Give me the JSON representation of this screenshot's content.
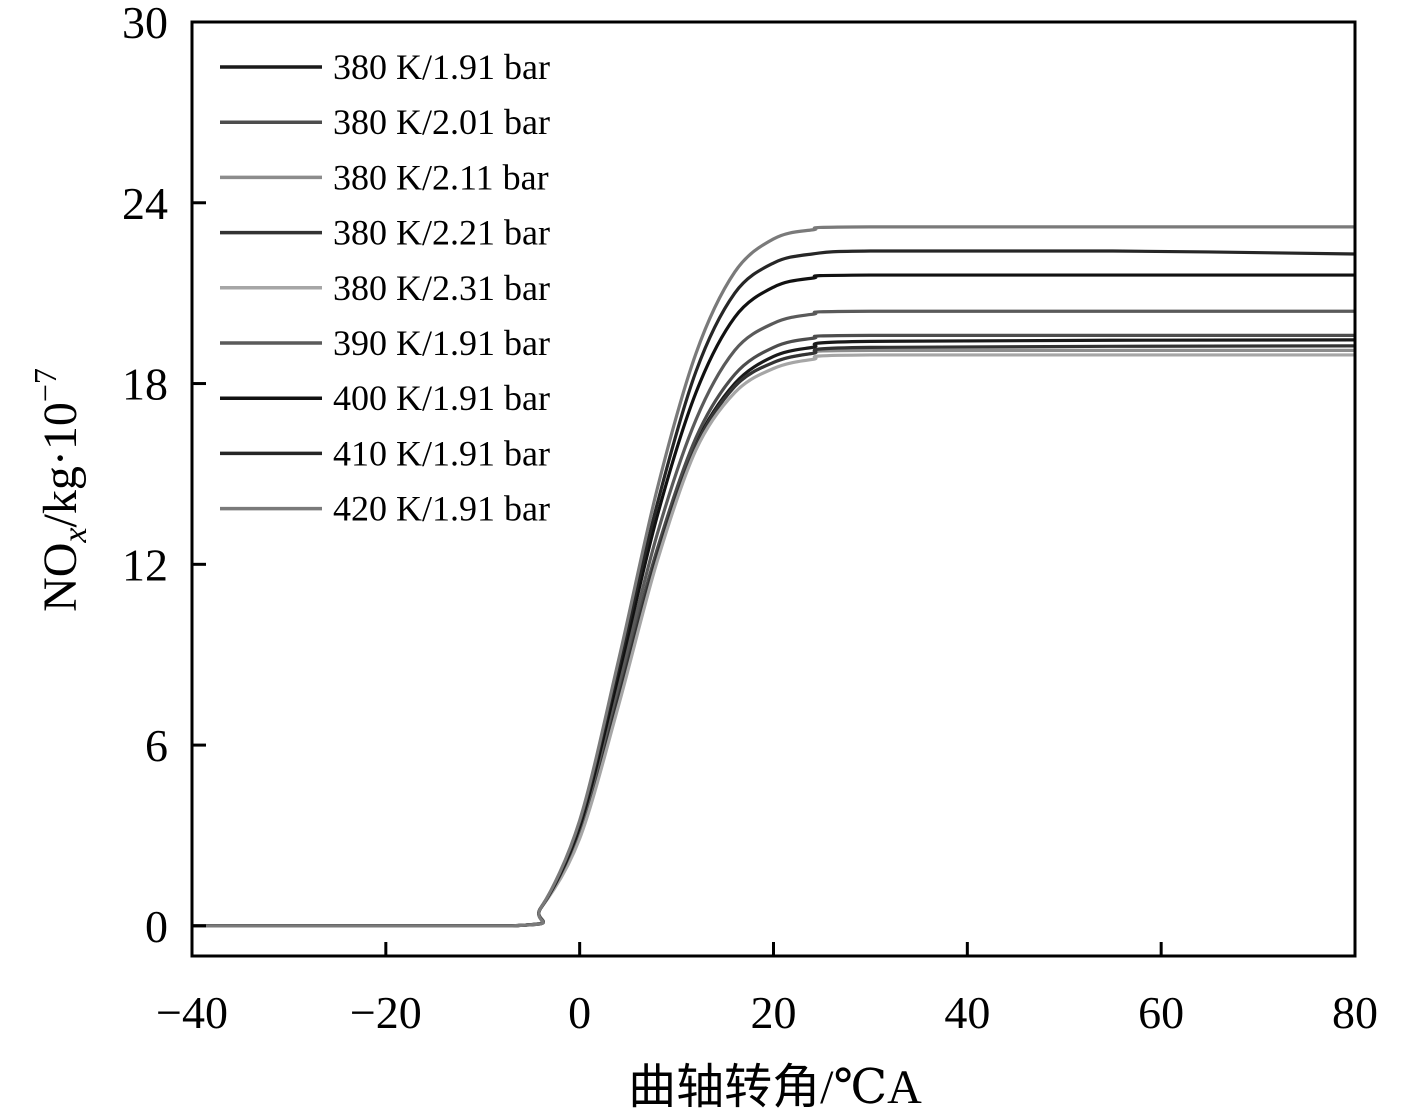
{
  "chart_data": {
    "type": "line",
    "xlabel": "曲轴转角/℃A",
    "ylabel": {
      "main": "NO",
      "sub": "x",
      "rest": "/kg·10",
      "sup": "−7"
    },
    "xlim": [
      -40,
      80
    ],
    "ylim": [
      -1,
      30
    ],
    "xticks": [
      -40,
      -20,
      0,
      20,
      40,
      60,
      80
    ],
    "xtick_labels": [
      "−40",
      "−20",
      "0",
      "20",
      "40",
      "60",
      "80"
    ],
    "yticks": [
      0,
      6,
      12,
      18,
      24,
      30
    ],
    "ytick_labels": [
      "0",
      "6",
      "12",
      "18",
      "24",
      "30"
    ],
    "grid": false,
    "legend_position": "top-left",
    "series": [
      {
        "name": "380 K/1.91 bar",
        "color": "#1a1a1a",
        "x": [
          -40,
          -7,
          -4,
          0,
          4,
          8,
          12,
          16,
          20,
          24,
          30,
          80
        ],
        "y": [
          0,
          0,
          0.6,
          3.0,
          7.5,
          12.4,
          16.0,
          18.0,
          18.9,
          19.2,
          19.4,
          19.45
        ]
      },
      {
        "name": "380 K/2.01 bar",
        "color": "#4d4d4d",
        "x": [
          -40,
          -7,
          -4,
          0,
          4,
          8,
          12,
          16,
          20,
          24,
          30,
          80
        ],
        "y": [
          0,
          0,
          0.6,
          3.1,
          7.8,
          12.5,
          16.2,
          18.3,
          19.2,
          19.5,
          19.6,
          19.6
        ]
      },
      {
        "name": "380 K/2.11 bar",
        "color": "#8c8c8c",
        "x": [
          -40,
          -7,
          -4,
          0,
          4,
          8,
          12,
          16,
          20,
          24,
          30,
          80
        ],
        "y": [
          0,
          0,
          0.6,
          3.0,
          7.4,
          12.2,
          15.9,
          17.9,
          18.7,
          19.0,
          19.1,
          19.1
        ]
      },
      {
        "name": "380 K/2.21 bar",
        "color": "#333333",
        "x": [
          -40,
          -7,
          -4,
          0,
          4,
          8,
          12,
          16,
          20,
          24,
          30,
          80
        ],
        "y": [
          0,
          0,
          0.6,
          3.0,
          7.5,
          12.3,
          15.9,
          17.9,
          18.7,
          19.0,
          19.2,
          19.25
        ]
      },
      {
        "name": "380 K/2.31 bar",
        "color": "#a6a6a6",
        "x": [
          -40,
          -7,
          -4,
          0,
          4,
          8,
          12,
          16,
          20,
          24,
          30,
          80
        ],
        "y": [
          0,
          0,
          0.6,
          2.9,
          7.3,
          12.1,
          15.8,
          17.7,
          18.5,
          18.8,
          18.95,
          18.95
        ]
      },
      {
        "name": "390 K/1.91 bar",
        "color": "#5a5a5a",
        "x": [
          -40,
          -7,
          -4,
          0,
          4,
          8,
          12,
          16,
          20,
          24,
          30,
          80
        ],
        "y": [
          0,
          0,
          0.6,
          3.2,
          8.0,
          13.0,
          16.8,
          19.1,
          20.0,
          20.3,
          20.4,
          20.4
        ]
      },
      {
        "name": "400 K/1.91 bar",
        "color": "#111111",
        "x": [
          -40,
          -7,
          -4,
          0,
          4,
          8,
          12,
          16,
          20,
          24,
          30,
          80
        ],
        "y": [
          0,
          0,
          0.6,
          3.3,
          8.3,
          13.6,
          17.7,
          20.2,
          21.2,
          21.5,
          21.6,
          21.6
        ]
      },
      {
        "name": "410 K/1.91 bar",
        "color": "#262626",
        "x": [
          -40,
          -7,
          -4,
          0,
          4,
          8,
          12,
          16,
          20,
          24,
          30,
          55,
          80
        ],
        "y": [
          0,
          0,
          0.6,
          3.4,
          8.6,
          14.0,
          18.4,
          21.0,
          22.0,
          22.3,
          22.4,
          22.4,
          22.3
        ]
      },
      {
        "name": "420 K/1.91 bar",
        "color": "#7a7a7a",
        "x": [
          -40,
          -7,
          -4,
          0,
          4,
          8,
          12,
          16,
          20,
          24,
          30,
          80
        ],
        "y": [
          0,
          0,
          0.6,
          3.5,
          8.8,
          14.5,
          19.0,
          21.7,
          22.8,
          23.1,
          23.2,
          23.2
        ]
      }
    ]
  }
}
